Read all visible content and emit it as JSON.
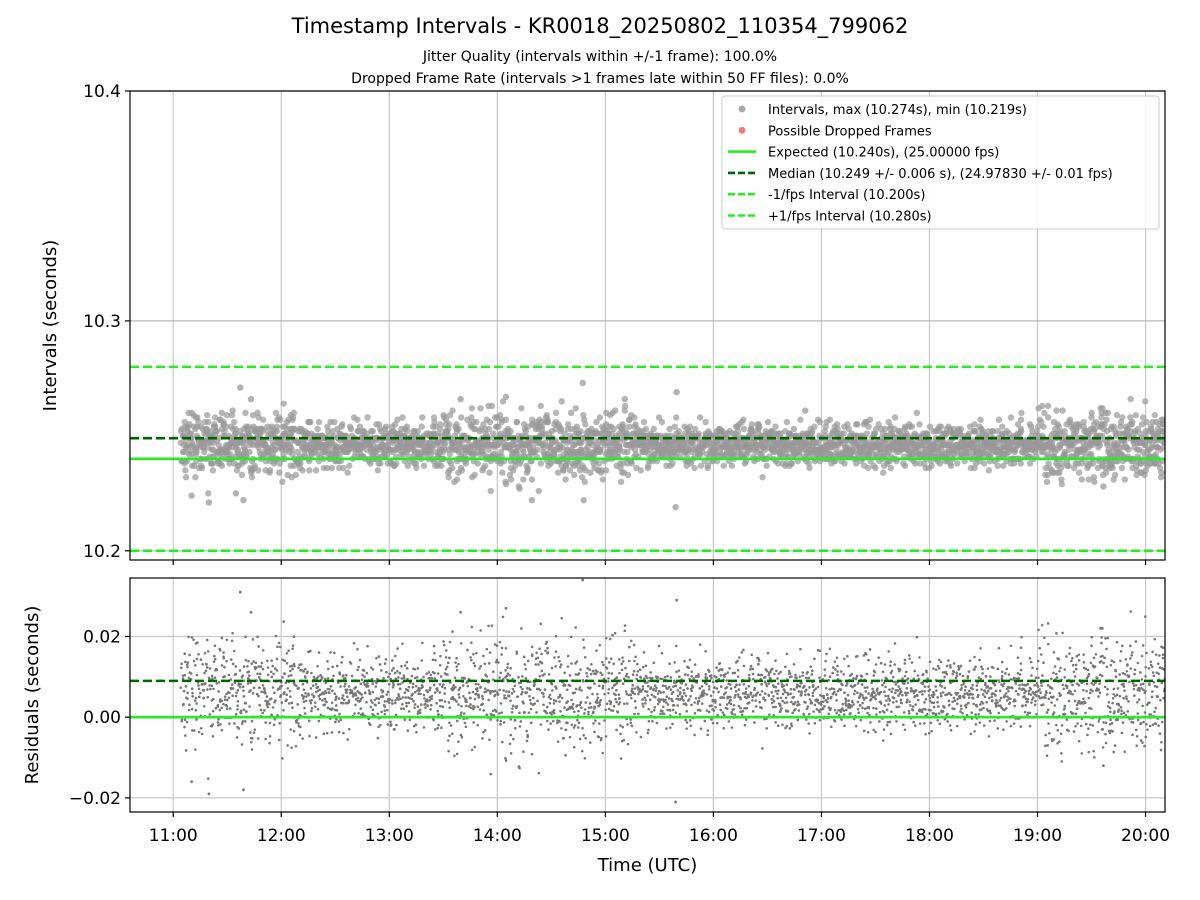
{
  "header": {
    "title": "Timestamp Intervals - KR0018_20250802_110354_799062",
    "subtitle1": "Jitter Quality (intervals within +/-1 frame): 100.0%",
    "subtitle2": "Dropped Frame Rate (intervals >1 frames late within 50 FF files): 0.0%"
  },
  "chart_data": [
    {
      "type": "scatter",
      "panel": "top",
      "ylabel": "Intervals (seconds)",
      "ylim": [
        10.196,
        10.4
      ],
      "yticks": [
        10.2,
        10.3,
        10.4
      ],
      "ytick_labels": [
        "10.2",
        "10.3",
        "10.4"
      ],
      "xlim_hours": [
        10.6,
        20.18
      ],
      "grid": true,
      "legend_position": "top-right",
      "legend": [
        {
          "label": "Intervals, max (10.274s), min (10.219s)",
          "kind": "marker",
          "color": "#999999"
        },
        {
          "label": "Possible Dropped Frames",
          "kind": "marker",
          "color": "#f06060"
        },
        {
          "label": "Expected (10.240s), (25.00000 fps)",
          "kind": "solid",
          "color": "#22ee22"
        },
        {
          "label": "Median (10.249 +/- 0.006 s), (24.97830 +/- 0.01 fps)",
          "kind": "dashed",
          "color": "#006400"
        },
        {
          "label": "-1/fps Interval (10.200s)",
          "kind": "dashed",
          "color": "#22ee22"
        },
        {
          "label": "+1/fps Interval (10.280s)",
          "kind": "dashed",
          "color": "#22ee22"
        }
      ],
      "reference_lines": {
        "expected": 10.24,
        "median": 10.249,
        "minus_interval": 10.2,
        "plus_interval": 10.28
      },
      "series": [
        {
          "name": "Intervals, max (10.274s), min (10.219s)",
          "x_range_hours": [
            11.07,
            20.18
          ],
          "count": 3200,
          "typical_band": [
            10.236,
            10.256
          ],
          "sample_points": [
            {
              "x": 11.17,
              "y": 10.224
            },
            {
              "x": 11.33,
              "y": 10.221
            },
            {
              "x": 11.58,
              "y": 10.225
            },
            {
              "x": 11.62,
              "y": 10.271
            },
            {
              "x": 11.65,
              "y": 10.222
            },
            {
              "x": 11.72,
              "y": 10.266
            },
            {
              "x": 12.09,
              "y": 10.259
            },
            {
              "x": 13.66,
              "y": 10.266
            },
            {
              "x": 14.08,
              "y": 10.267
            },
            {
              "x": 14.32,
              "y": 10.222
            },
            {
              "x": 14.79,
              "y": 10.273
            },
            {
              "x": 14.8,
              "y": 10.222
            },
            {
              "x": 15.18,
              "y": 10.266
            },
            {
              "x": 15.65,
              "y": 10.219
            },
            {
              "x": 15.66,
              "y": 10.269
            },
            {
              "x": 16.85,
              "y": 10.261
            },
            {
              "x": 19.6,
              "y": 10.262
            },
            {
              "x": 19.61,
              "y": 10.228
            }
          ],
          "color": "#999999"
        }
      ]
    },
    {
      "type": "scatter",
      "panel": "bottom",
      "xlabel": "Time (UTC)",
      "ylabel": "Residuals (seconds)",
      "ylim": [
        -0.0235,
        0.0345
      ],
      "yticks": [
        -0.02,
        0.0,
        0.02
      ],
      "ytick_labels": [
        "−0.02",
        "0.00",
        "0.02"
      ],
      "xlim_hours": [
        10.6,
        20.18
      ],
      "xticks_hours": [
        11,
        12,
        13,
        14,
        15,
        16,
        17,
        18,
        19,
        20
      ],
      "xtick_labels": [
        "11:00",
        "12:00",
        "13:00",
        "14:00",
        "15:00",
        "16:00",
        "17:00",
        "18:00",
        "19:00",
        "20:00"
      ],
      "grid": true,
      "reference_lines": {
        "expected": 0.0,
        "median": 0.009
      },
      "series": [
        {
          "name": "Residuals",
          "x_range_hours": [
            11.07,
            20.18
          ],
          "count": 3200,
          "typical_band": [
            -0.004,
            0.016
          ],
          "sample_points": [
            {
              "x": 11.17,
              "y": -0.016
            },
            {
              "x": 11.33,
              "y": -0.019
            },
            {
              "x": 11.62,
              "y": 0.031
            },
            {
              "x": 11.65,
              "y": -0.018
            },
            {
              "x": 11.72,
              "y": 0.026
            },
            {
              "x": 13.66,
              "y": 0.026
            },
            {
              "x": 14.08,
              "y": 0.027
            },
            {
              "x": 14.79,
              "y": 0.034
            },
            {
              "x": 15.65,
              "y": -0.021
            },
            {
              "x": 15.66,
              "y": 0.029
            },
            {
              "x": 19.6,
              "y": 0.022
            },
            {
              "x": 19.61,
              "y": -0.012
            }
          ],
          "color": "#777777"
        }
      ]
    }
  ]
}
